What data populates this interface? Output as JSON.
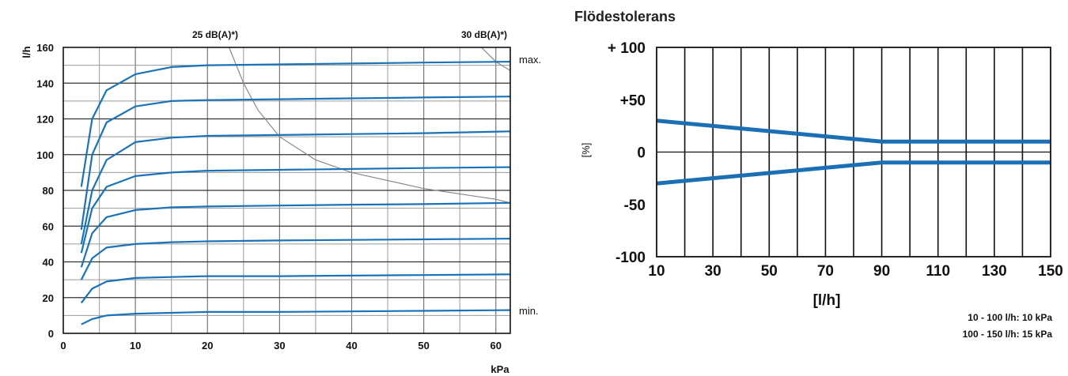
{
  "chart_data": [
    {
      "type": "line",
      "title": "",
      "xlabel": "kPa",
      "ylabel": "l/h",
      "xlim": [
        0,
        62
      ],
      "ylim": [
        0,
        160
      ],
      "x_ticks": [
        "0",
        "10",
        "20",
        "30",
        "40",
        "50",
        "60"
      ],
      "y_ticks": [
        "0",
        "20",
        "40",
        "60",
        "80",
        "100",
        "120",
        "140",
        "160"
      ],
      "grid": true,
      "annotations": {
        "top_left": "25 dB(A)*)",
        "top_right": "30 dB(A)*)",
        "max_label": "max.",
        "min_label": "min."
      },
      "series": [
        {
          "x": [
            2.5,
            4,
            6,
            10,
            15,
            20,
            30,
            40,
            50,
            62
          ],
          "y": [
            5,
            8,
            10,
            11,
            11.5,
            12,
            12,
            12.3,
            12.6,
            13
          ]
        },
        {
          "x": [
            2.5,
            4,
            6,
            10,
            15,
            20,
            30,
            40,
            50,
            62
          ],
          "y": [
            17,
            25,
            29,
            31,
            31.5,
            32,
            32,
            32.3,
            32.6,
            33
          ]
        },
        {
          "x": [
            2.5,
            4,
            6,
            10,
            15,
            20,
            30,
            40,
            50,
            62
          ],
          "y": [
            30,
            42,
            48,
            50,
            51,
            51.5,
            52,
            52.3,
            52.6,
            53
          ]
        },
        {
          "x": [
            2.5,
            4,
            6,
            10,
            15,
            20,
            30,
            40,
            50,
            62
          ],
          "y": [
            37,
            56,
            65,
            69,
            70.5,
            71,
            71.5,
            72,
            72.3,
            73
          ]
        },
        {
          "x": [
            2.5,
            4,
            6,
            10,
            15,
            20,
            30,
            40,
            50,
            62
          ],
          "y": [
            45,
            70,
            82,
            88,
            90,
            91,
            91.5,
            92,
            92.5,
            93
          ]
        },
        {
          "x": [
            2.5,
            4,
            6,
            10,
            15,
            20,
            30,
            40,
            50,
            62
          ],
          "y": [
            50,
            80,
            97,
            107,
            109.5,
            110.5,
            111,
            111.5,
            112,
            113
          ]
        },
        {
          "x": [
            2.5,
            4,
            6,
            10,
            15,
            20,
            30,
            40,
            50,
            62
          ],
          "y": [
            58,
            100,
            118,
            127,
            130,
            130.5,
            131,
            131.5,
            132,
            132.5
          ]
        },
        {
          "x": [
            2.5,
            4,
            6,
            10,
            15,
            20,
            30,
            40,
            50,
            62
          ],
          "y": [
            82,
            120,
            136,
            145,
            149,
            150,
            150.5,
            151,
            151.5,
            152
          ]
        }
      ],
      "noise_curves": [
        {
          "name": "25 dB(A)",
          "x": [
            23,
            25,
            27,
            30,
            35,
            40,
            50,
            60,
            62
          ],
          "y": [
            160,
            140,
            125,
            110,
            97,
            90,
            81,
            75,
            73
          ]
        },
        {
          "name": "30 dB(A)",
          "x": [
            58,
            60,
            62
          ],
          "y": [
            160,
            152,
            147
          ]
        }
      ]
    },
    {
      "type": "line",
      "title": "Flödestolerans",
      "xlabel": "[l/h]",
      "ylabel": "[%]",
      "xlim": [
        10,
        150
      ],
      "ylim": [
        -100,
        100
      ],
      "x_ticks": [
        "10",
        "30",
        "50",
        "70",
        "90",
        "110",
        "130",
        "150"
      ],
      "y_ticks": [
        "+ 100",
        "+50",
        "0",
        "-50",
        "-100"
      ],
      "y_tick_values": [
        100,
        50,
        0,
        -50,
        -100
      ],
      "grid": true,
      "series": [
        {
          "x": [
            10,
            30,
            50,
            70,
            90,
            110,
            130,
            150
          ],
          "y": [
            30,
            25,
            20,
            15,
            10,
            10,
            10,
            10
          ]
        },
        {
          "x": [
            10,
            30,
            50,
            70,
            90,
            110,
            130,
            150
          ],
          "y": [
            -30,
            -25,
            -20,
            -15,
            -10,
            -10,
            -10,
            -10
          ]
        }
      ],
      "notes": [
        "10 - 100 l/h: 10 kPa",
        "100 - 150 l/h: 15 kPa"
      ]
    }
  ]
}
